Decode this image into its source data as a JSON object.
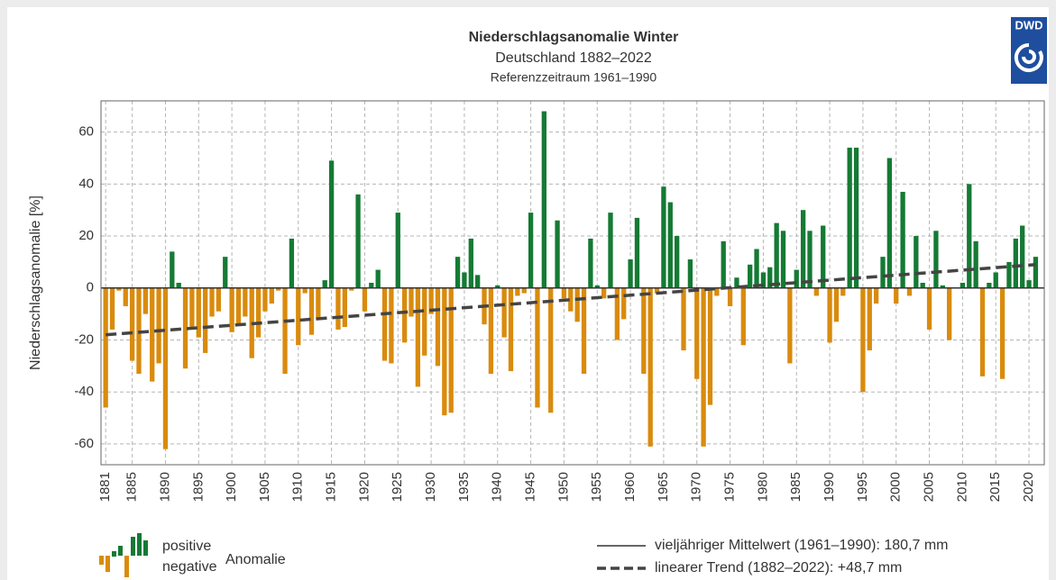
{
  "chart_data": {
    "type": "bar",
    "title": "Niederschlagsanomalie Winter",
    "subtitle": "Deutschland 1882–2022",
    "subtitle2": "Referenzzeitraum 1961–1990",
    "ylabel": "Niederschlagsanomalie [%]",
    "logo": "DWD",
    "x": [
      1881,
      1882,
      1883,
      1884,
      1885,
      1886,
      1887,
      1888,
      1889,
      1890,
      1891,
      1892,
      1893,
      1894,
      1895,
      1896,
      1897,
      1898,
      1899,
      1900,
      1901,
      1902,
      1903,
      1904,
      1905,
      1906,
      1907,
      1908,
      1909,
      1910,
      1911,
      1912,
      1913,
      1914,
      1915,
      1916,
      1917,
      1918,
      1919,
      1920,
      1921,
      1922,
      1923,
      1924,
      1925,
      1926,
      1927,
      1928,
      1929,
      1930,
      1931,
      1932,
      1933,
      1934,
      1935,
      1936,
      1937,
      1938,
      1939,
      1940,
      1941,
      1942,
      1943,
      1944,
      1945,
      1946,
      1947,
      1948,
      1949,
      1950,
      1951,
      1952,
      1953,
      1954,
      1955,
      1956,
      1957,
      1958,
      1959,
      1960,
      1961,
      1962,
      1963,
      1964,
      1965,
      1966,
      1967,
      1968,
      1969,
      1970,
      1971,
      1972,
      1973,
      1974,
      1975,
      1976,
      1977,
      1978,
      1979,
      1980,
      1981,
      1982,
      1983,
      1984,
      1985,
      1986,
      1987,
      1988,
      1989,
      1990,
      1991,
      1992,
      1993,
      1994,
      1995,
      1996,
      1997,
      1998,
      1999,
      2000,
      2001,
      2002,
      2003,
      2004,
      2005,
      2006,
      2007,
      2008,
      2009,
      2010,
      2011,
      2012,
      2013,
      2014,
      2015,
      2016,
      2017,
      2018,
      2019,
      2020,
      2021
    ],
    "values": [
      -46,
      -16,
      -1,
      -7,
      -28,
      -33,
      -10,
      -36,
      -29,
      -62,
      14,
      2,
      -31,
      -16,
      -19,
      -25,
      -11,
      -9,
      12,
      -17,
      -14,
      -11,
      -27,
      -19,
      -9,
      -6,
      -1,
      -33,
      19,
      -22,
      -2,
      -18,
      -12,
      3,
      49,
      -16,
      -15,
      -1,
      36,
      -9,
      2,
      7,
      -28,
      -29,
      29,
      -21,
      -11,
      -38,
      -26,
      -10,
      -30,
      -49,
      -48,
      12,
      6,
      19,
      5,
      -14,
      -33,
      1,
      -19,
      -32,
      -3,
      -2,
      29,
      -46,
      68,
      -48,
      26,
      -4,
      -9,
      -13,
      -33,
      19,
      1,
      -4,
      29,
      -20,
      -12,
      11,
      27,
      -33,
      -61,
      -2,
      39,
      33,
      20,
      -24,
      11,
      -35,
      -61,
      -45,
      -3,
      18,
      -7,
      4,
      -22,
      9,
      15,
      6,
      8,
      25,
      22,
      -29,
      7,
      30,
      22,
      -3,
      24,
      -21,
      -13,
      -3,
      54,
      54,
      -40,
      -24,
      -6,
      12,
      50,
      -6,
      37,
      -3,
      20,
      2,
      -16,
      22,
      1,
      -20,
      0,
      2,
      40,
      18,
      -34,
      2,
      6,
      -35,
      10,
      19,
      24,
      3,
      12
    ],
    "positive_color": "#157a34",
    "negative_color": "#d98b0d",
    "trend": {
      "x": [
        1881,
        2021
      ],
      "values": [
        -18,
        9
      ],
      "color": "#444444"
    },
    "xlim": [
      1880.3,
      2022.3
    ],
    "ylim": [
      -68,
      72
    ],
    "xticks": [
      1881,
      1885,
      1890,
      1895,
      1900,
      1905,
      1910,
      1915,
      1920,
      1925,
      1930,
      1935,
      1940,
      1945,
      1950,
      1955,
      1960,
      1965,
      1970,
      1975,
      1980,
      1985,
      1990,
      1995,
      2000,
      2005,
      2010,
      2015,
      2020
    ],
    "yticks": [
      -60,
      -40,
      -20,
      0,
      20,
      40,
      60
    ],
    "grid": true,
    "legend": {
      "positive": "positive",
      "negative": "negative",
      "label": "Anomalie",
      "mean": "vieljähriger Mittelwert (1961–1990): 180,7 mm",
      "trend": "linearer Trend (1882–2022): +48,7 mm"
    }
  }
}
